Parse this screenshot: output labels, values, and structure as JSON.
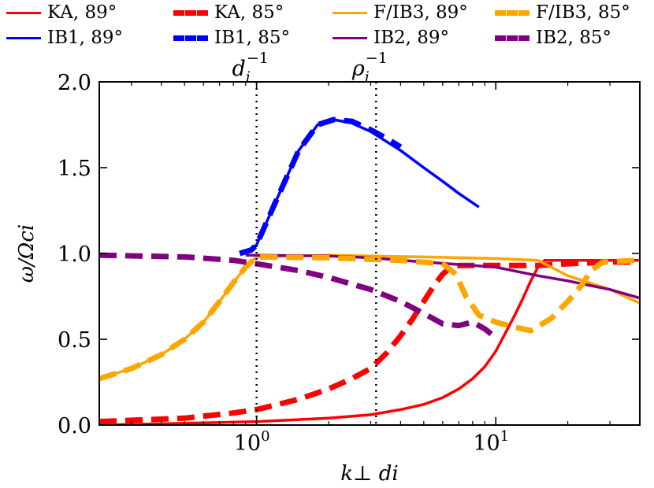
{
  "chart_data": {
    "type": "line",
    "xscale": "log",
    "xlim": [
      0.22,
      40
    ],
    "ylim": [
      0.0,
      2.0
    ],
    "xlabel": "k⊥ di",
    "ylabel": "ω/Ωci",
    "grid": false,
    "legend_position": "top, 4 columns",
    "x_ticks": [
      {
        "value": 1,
        "base": "10",
        "exp": "0"
      },
      {
        "value": 10,
        "base": "10",
        "exp": "1"
      }
    ],
    "y_ticks": [
      {
        "value": 0.0,
        "label": "0.0"
      },
      {
        "value": 0.5,
        "label": "0.5"
      },
      {
        "value": 1.0,
        "label": "1.0"
      },
      {
        "value": 1.5,
        "label": "1.5"
      },
      {
        "value": 2.0,
        "label": "2.0"
      }
    ],
    "vlines": [
      {
        "x": 1.0,
        "label": "d",
        "sub": "i",
        "sup": "−1",
        "style": "dotted"
      },
      {
        "x": 3.16,
        "label": "ρ",
        "sub": "i",
        "sup": "−1",
        "style": "dotted"
      }
    ],
    "series": [
      {
        "name": "KA, 89°",
        "color": "#ff0000",
        "dash": "solid",
        "x": [
          0.22,
          0.5,
          1.0,
          2.0,
          3.0,
          4.0,
          5.0,
          6.0,
          7.0,
          8.0,
          9.0,
          10.0,
          11.0,
          12.0,
          13.0,
          14.0,
          15.0,
          16.0,
          17.0,
          20.0,
          30.0,
          40.0
        ],
        "y": [
          0.0,
          0.01,
          0.02,
          0.04,
          0.06,
          0.09,
          0.12,
          0.16,
          0.21,
          0.27,
          0.34,
          0.43,
          0.54,
          0.64,
          0.74,
          0.84,
          0.92,
          0.96,
          0.96,
          0.96,
          0.96,
          0.96
        ]
      },
      {
        "name": "IB1, 89°",
        "color": "#0000ff",
        "dash": "solid",
        "x": [
          0.92,
          1.0,
          1.2,
          1.5,
          1.8,
          2.1,
          2.5,
          3.0,
          4.0,
          5.0,
          6.0,
          7.0,
          8.5
        ],
        "y": [
          1.01,
          1.05,
          1.3,
          1.6,
          1.75,
          1.78,
          1.76,
          1.71,
          1.6,
          1.5,
          1.42,
          1.35,
          1.27
        ]
      },
      {
        "name": "KA, 85°",
        "color": "#ff0000",
        "dash": "dashed",
        "x": [
          0.22,
          0.5,
          0.8,
          1.0,
          1.5,
          2.0,
          2.5,
          3.0,
          3.5,
          4.0,
          4.5,
          5.0,
          5.5,
          6.0,
          6.5,
          7.0,
          8.0,
          10.0,
          15.0,
          20.0,
          30.0,
          40.0
        ],
        "y": [
          0.02,
          0.04,
          0.07,
          0.09,
          0.15,
          0.21,
          0.27,
          0.33,
          0.42,
          0.52,
          0.62,
          0.72,
          0.81,
          0.88,
          0.92,
          0.93,
          0.93,
          0.93,
          0.93,
          0.94,
          0.95,
          0.95
        ]
      },
      {
        "name": "IB1, 85°",
        "color": "#0000ff",
        "dash": "dashed",
        "x": [
          0.85,
          0.95,
          1.0,
          1.2,
          1.5,
          1.8,
          2.1,
          2.5,
          3.0,
          3.5,
          4.0
        ],
        "y": [
          1.0,
          1.02,
          1.05,
          1.3,
          1.6,
          1.75,
          1.78,
          1.77,
          1.72,
          1.67,
          1.62
        ]
      },
      {
        "name": "F/IB3, 89°",
        "color": "#ffa500",
        "dash": "solid",
        "x": [
          0.22,
          0.3,
          0.4,
          0.5,
          0.6,
          0.7,
          0.8,
          0.9,
          1.0,
          2.0,
          5.0,
          10.0,
          15.0,
          20.0,
          30.0,
          40.0
        ],
        "y": [
          0.27,
          0.33,
          0.41,
          0.5,
          0.6,
          0.72,
          0.83,
          0.92,
          0.98,
          0.99,
          0.98,
          0.97,
          0.96,
          0.87,
          0.79,
          0.71
        ]
      },
      {
        "name": "IB2, 89°",
        "color": "#800080",
        "dash": "solid",
        "x": [
          0.9,
          1.0,
          2.0,
          3.0,
          5.0,
          8.0,
          10.0,
          15.0,
          20.0,
          30.0,
          40.0
        ],
        "y": [
          0.99,
          0.99,
          0.985,
          0.975,
          0.95,
          0.93,
          0.92,
          0.87,
          0.84,
          0.79,
          0.74
        ]
      },
      {
        "name": "F/IB3, 85°",
        "color": "#ffa500",
        "dash": "dashed",
        "x": [
          0.22,
          0.3,
          0.4,
          0.5,
          0.6,
          0.7,
          0.8,
          0.9,
          1.0,
          2.0,
          4.0,
          6.0,
          6.8,
          7.5,
          8.5,
          10.0,
          12.0,
          14.0,
          17.0,
          20.0,
          23.0,
          25.0,
          28.0,
          40.0
        ],
        "y": [
          0.27,
          0.33,
          0.41,
          0.5,
          0.6,
          0.72,
          0.83,
          0.92,
          0.98,
          0.975,
          0.96,
          0.94,
          0.88,
          0.75,
          0.64,
          0.6,
          0.57,
          0.55,
          0.62,
          0.72,
          0.82,
          0.9,
          0.95,
          0.96
        ]
      },
      {
        "name": "IB2, 85°",
        "color": "#800080",
        "dash": "dashed",
        "x": [
          0.22,
          0.5,
          0.8,
          1.0,
          1.5,
          2.0,
          3.0,
          4.0,
          5.0,
          6.0,
          7.0,
          8.0,
          9.0,
          10.0
        ],
        "y": [
          0.99,
          0.98,
          0.96,
          0.94,
          0.9,
          0.86,
          0.79,
          0.72,
          0.65,
          0.59,
          0.58,
          0.6,
          0.56,
          0.51
        ]
      }
    ]
  }
}
